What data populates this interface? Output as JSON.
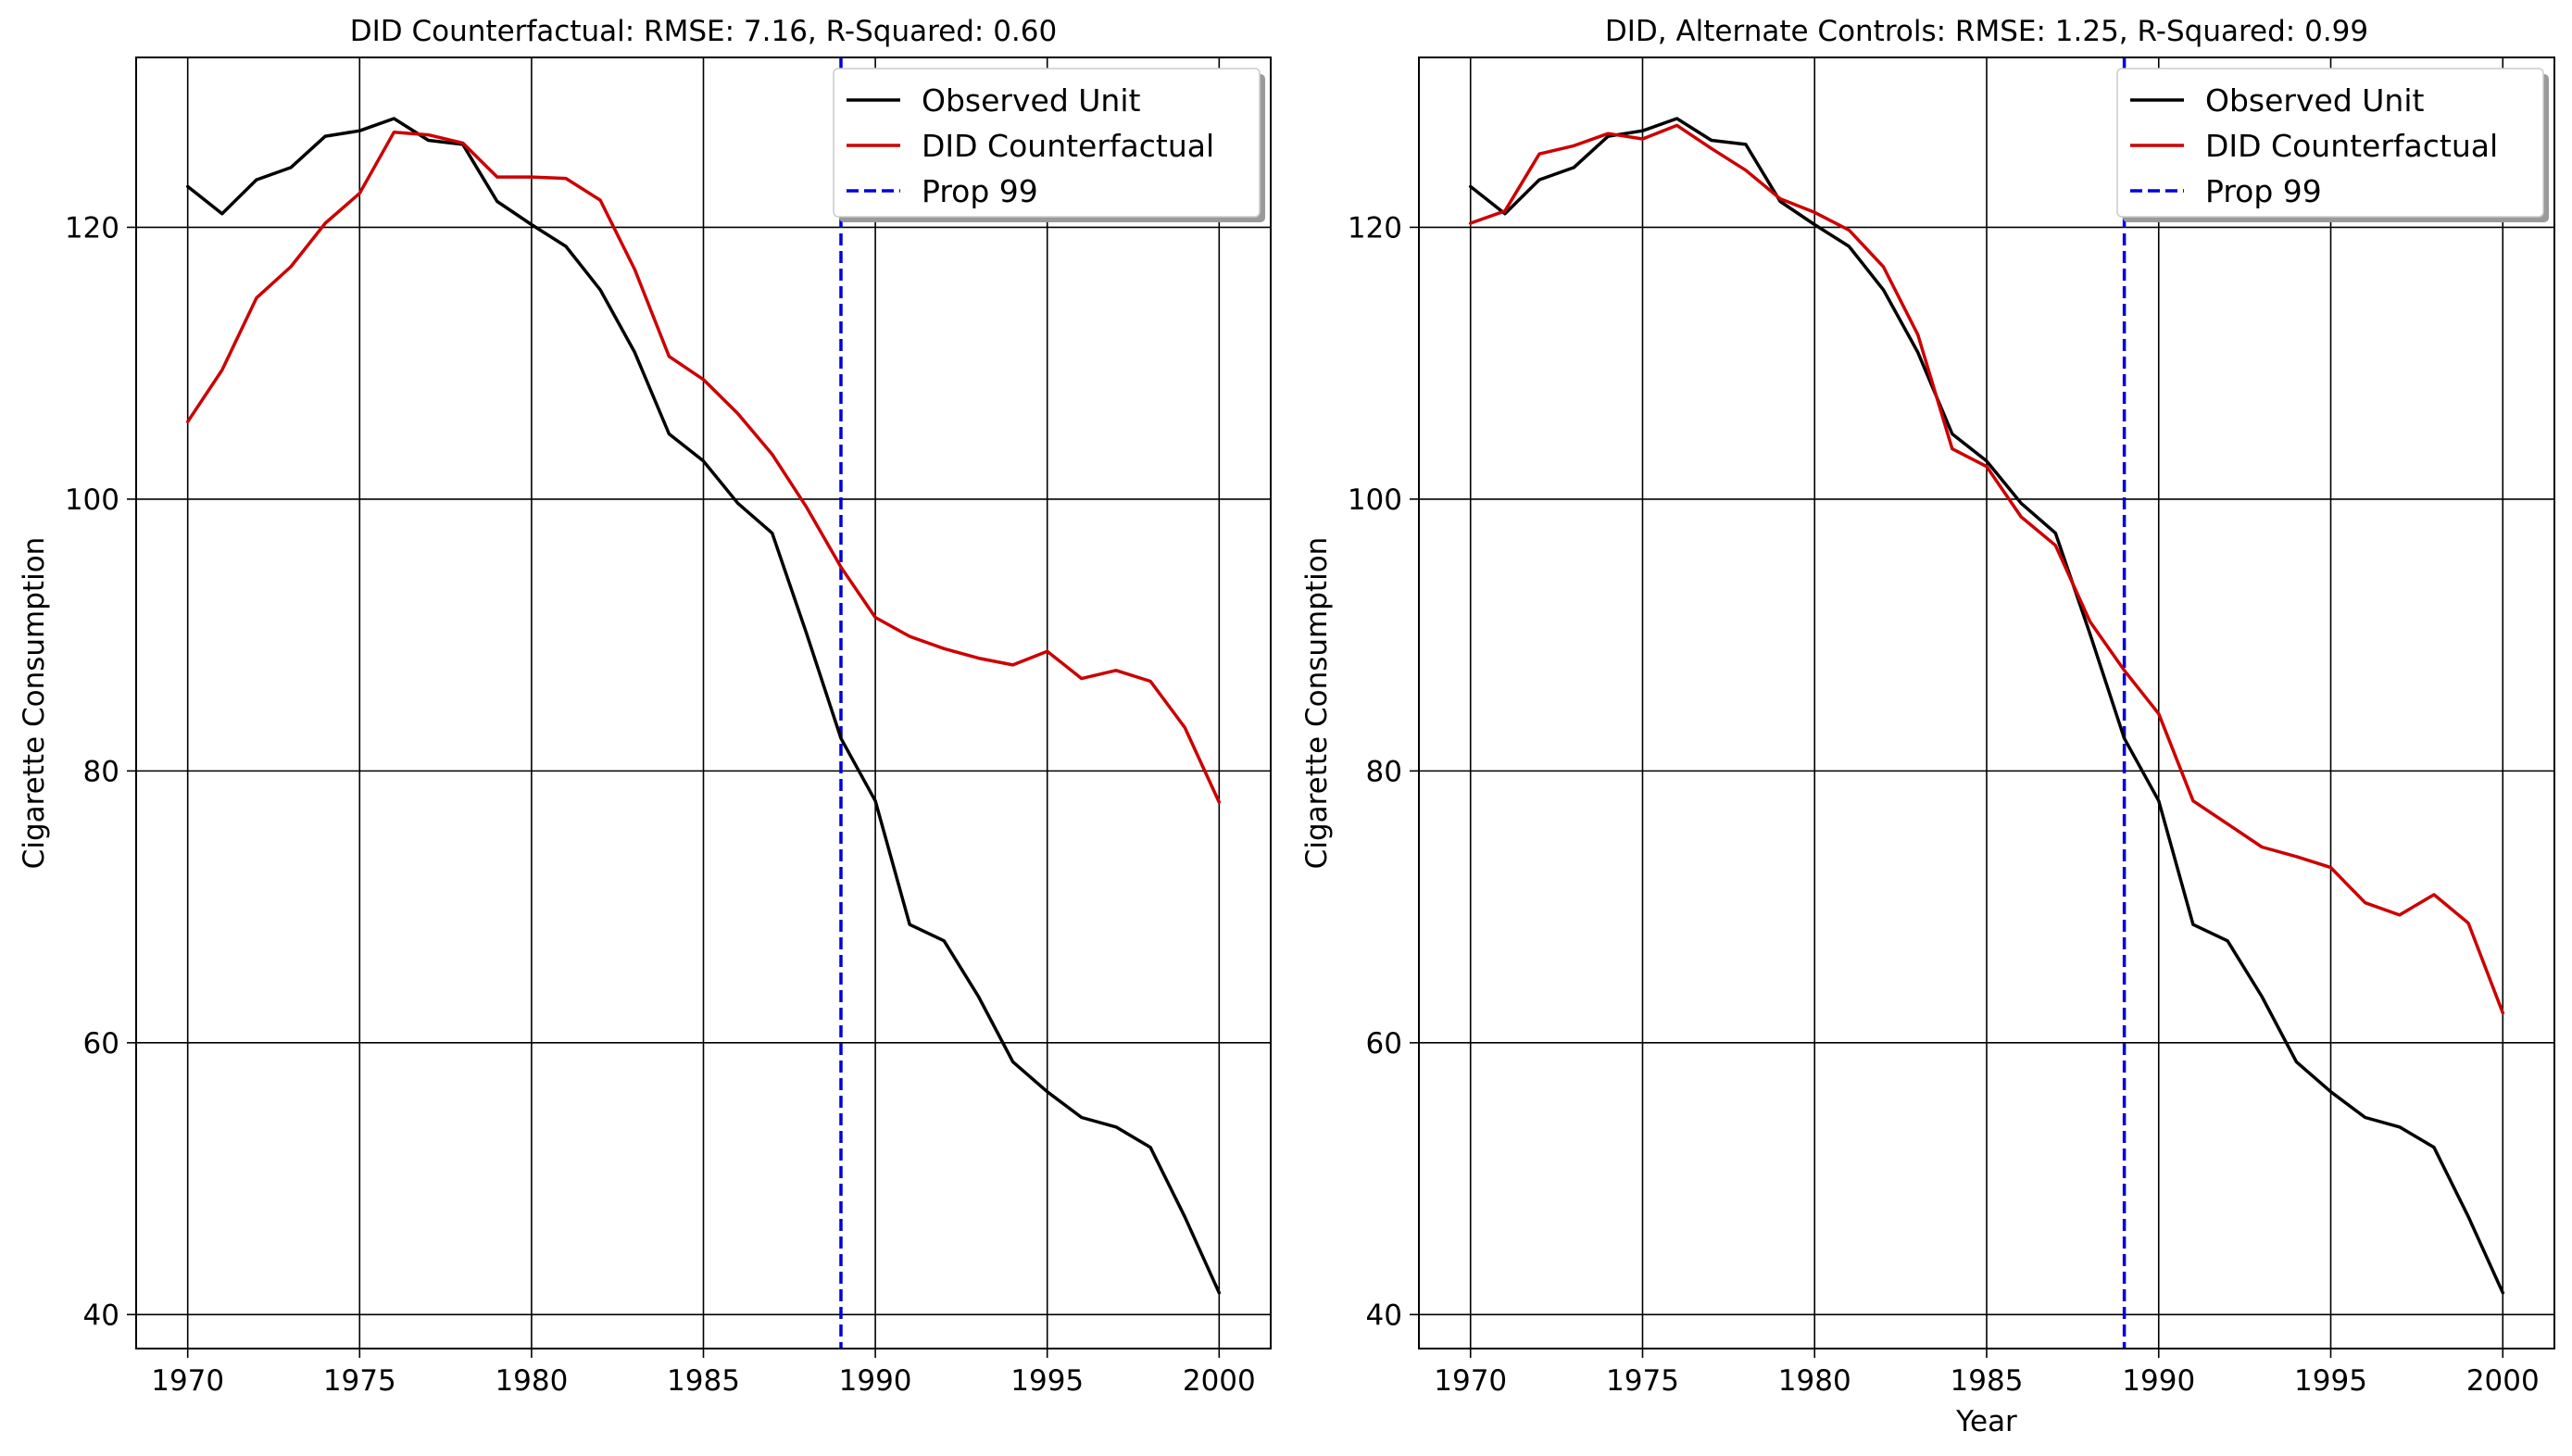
{
  "chart_data": [
    {
      "type": "line",
      "title": "DID Counterfactual: RMSE: 7.16, R-Squared: 0.60",
      "xlabel": "",
      "ylabel": "Cigarette Consumption",
      "xlim": [
        1968.5,
        2001.5
      ],
      "ylim": [
        37.5,
        132.5
      ],
      "xticks": [
        1970,
        1975,
        1980,
        1985,
        1990,
        1995,
        2000
      ],
      "yticks": [
        40,
        60,
        80,
        100,
        120
      ],
      "grid": true,
      "legend": "top-right",
      "x": [
        1970,
        1971,
        1972,
        1973,
        1974,
        1975,
        1976,
        1977,
        1978,
        1979,
        1980,
        1981,
        1982,
        1983,
        1984,
        1985,
        1986,
        1987,
        1988,
        1989,
        1990,
        1991,
        1992,
        1993,
        1994,
        1995,
        1996,
        1997,
        1998,
        1999,
        2000
      ],
      "series": [
        {
          "name": "Observed Unit",
          "color": "#000000",
          "values": [
            123.0,
            121.0,
            123.5,
            124.4,
            126.7,
            127.1,
            128.0,
            126.4,
            126.1,
            121.9,
            120.2,
            118.6,
            115.4,
            110.8,
            104.8,
            102.8,
            99.7,
            97.5,
            90.1,
            82.4,
            77.8,
            68.7,
            67.5,
            63.4,
            58.6,
            56.4,
            54.5,
            53.8,
            52.3,
            47.2,
            41.6
          ]
        },
        {
          "name": "DID Counterfactual",
          "color": "#cc0000",
          "values": [
            105.7,
            109.5,
            114.8,
            117.1,
            120.3,
            122.5,
            127.0,
            126.8,
            126.2,
            123.7,
            123.7,
            123.6,
            122.0,
            116.9,
            110.5,
            108.8,
            106.3,
            103.3,
            99.4,
            95.0,
            91.3,
            89.9,
            89.0,
            88.3,
            87.8,
            88.8,
            86.8,
            87.4,
            86.6,
            83.2,
            77.7
          ]
        }
      ],
      "vline": {
        "name": "Prop 99",
        "x": 1989,
        "color": "#0000dd"
      }
    },
    {
      "type": "line",
      "title": "DID, Alternate Controls: RMSE: 1.25, R-Squared: 0.99",
      "xlabel": "Year",
      "ylabel": "Cigarette Consumption",
      "xlim": [
        1968.5,
        2001.5
      ],
      "ylim": [
        37.5,
        132.5
      ],
      "xticks": [
        1970,
        1975,
        1980,
        1985,
        1990,
        1995,
        2000
      ],
      "yticks": [
        40,
        60,
        80,
        100,
        120
      ],
      "grid": true,
      "legend": "top-right",
      "x": [
        1970,
        1971,
        1972,
        1973,
        1974,
        1975,
        1976,
        1977,
        1978,
        1979,
        1980,
        1981,
        1982,
        1983,
        1984,
        1985,
        1986,
        1987,
        1988,
        1989,
        1990,
        1991,
        1992,
        1993,
        1994,
        1995,
        1996,
        1997,
        1998,
        1999,
        2000
      ],
      "series": [
        {
          "name": "Observed Unit",
          "color": "#000000",
          "values": [
            123.0,
            121.0,
            123.5,
            124.4,
            126.7,
            127.1,
            128.0,
            126.4,
            126.1,
            121.9,
            120.2,
            118.6,
            115.4,
            110.8,
            104.8,
            102.8,
            99.7,
            97.5,
            90.1,
            82.4,
            77.8,
            68.7,
            67.5,
            63.4,
            58.6,
            56.4,
            54.5,
            53.8,
            52.3,
            47.2,
            41.6
          ]
        },
        {
          "name": "DID Counterfactual",
          "color": "#cc0000",
          "values": [
            120.3,
            121.2,
            125.4,
            126.0,
            126.9,
            126.5,
            127.5,
            125.8,
            124.2,
            122.1,
            121.1,
            119.8,
            117.1,
            112.1,
            103.7,
            102.4,
            98.7,
            96.6,
            91.0,
            87.4,
            84.2,
            77.8,
            76.1,
            74.4,
            73.7,
            72.9,
            70.3,
            69.4,
            70.9,
            68.8,
            62.2
          ]
        }
      ],
      "vline": {
        "name": "Prop 99",
        "x": 1989,
        "color": "#0000dd"
      }
    }
  ]
}
